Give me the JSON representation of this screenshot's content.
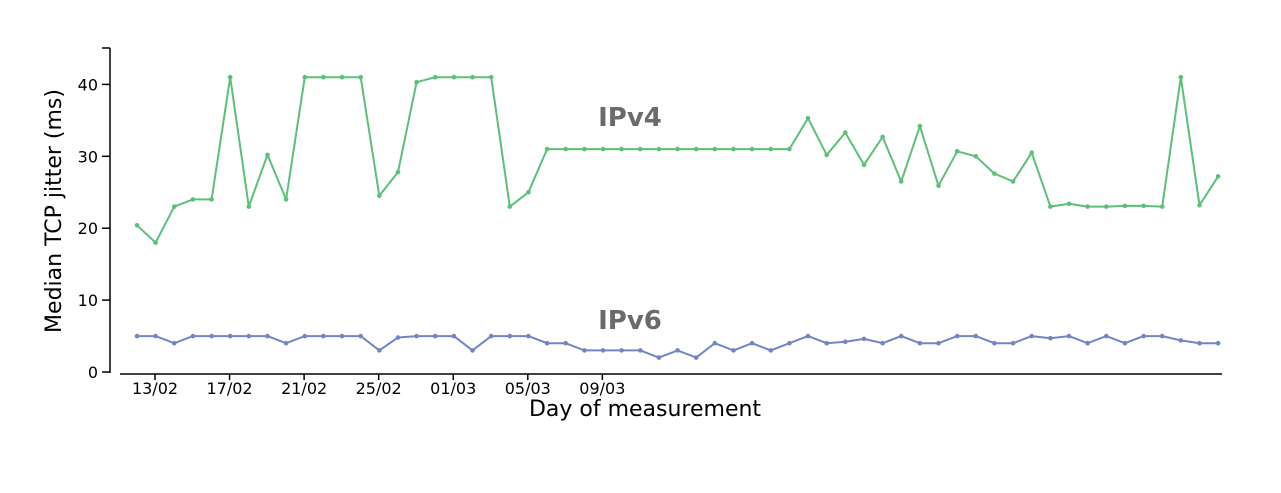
{
  "chart_data": {
    "type": "line",
    "xlabel": "Day of measurement",
    "ylabel": "Median TCP jitter (ms)",
    "ylim": [
      0,
      45
    ],
    "yticks": [
      0,
      10,
      20,
      30,
      40
    ],
    "xtick_labels": [
      {
        "label": "13/02",
        "day": 0
      },
      {
        "label": "17/02",
        "day": 4
      },
      {
        "label": "21/02",
        "day": 8
      },
      {
        "label": "25/02",
        "day": 12
      },
      {
        "label": "01/03",
        "day": 16
      },
      {
        "label": "05/03",
        "day": 20
      },
      {
        "label": "09/03",
        "day": 24
      }
    ],
    "grid": false,
    "series": [
      {
        "name": "IPv4",
        "color": "#5cbf7a",
        "values": [
          20.4,
          18.0,
          23.0,
          24.0,
          24.0,
          41.0,
          23.0,
          30.2,
          24.0,
          41.0,
          41.0,
          41.0,
          41.0,
          24.5,
          27.8,
          40.3,
          41.0,
          41.0,
          41.0,
          41.0,
          23.0,
          25.0,
          31.0,
          31.0,
          31.0,
          31.0,
          31.0,
          31.0,
          31.0,
          31.0,
          31.0,
          31.0,
          31.0,
          31.0,
          31.0,
          31.0,
          35.3,
          30.2,
          33.3,
          28.8,
          32.7,
          26.5,
          34.2,
          25.9,
          30.7,
          30.0,
          27.6,
          26.5,
          30.5,
          23.0,
          23.4,
          23.0,
          23.0,
          23.1,
          23.1,
          23.0,
          41.0,
          23.2,
          27.2
        ]
      },
      {
        "name": "IPv6",
        "color": "#7286c4",
        "values": [
          5.0,
          5.0,
          4.0,
          5.0,
          5.0,
          5.0,
          5.0,
          5.0,
          4.0,
          5.0,
          5.0,
          5.0,
          5.0,
          3.0,
          4.8,
          5.0,
          5.0,
          5.0,
          3.0,
          5.0,
          5.0,
          5.0,
          4.0,
          4.0,
          3.0,
          3.0,
          3.0,
          3.0,
          2.0,
          3.0,
          2.0,
          4.0,
          3.0,
          4.0,
          3.0,
          4.0,
          5.0,
          4.0,
          4.2,
          4.6,
          4.0,
          5.0,
          4.0,
          4.0,
          5.0,
          5.0,
          4.0,
          4.0,
          5.0,
          4.7,
          5.0,
          4.0,
          5.0,
          4.0,
          5.0,
          5.0,
          4.4,
          4.0,
          4.0
        ]
      }
    ]
  }
}
